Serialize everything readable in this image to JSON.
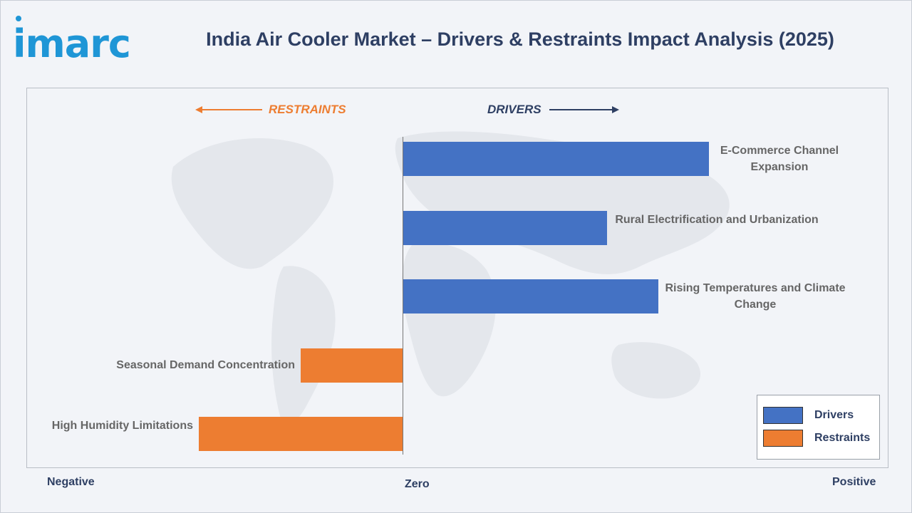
{
  "brand": {
    "logo_text": "imarc"
  },
  "title": "India Air Cooler Market – Drivers & Restraints Impact Analysis (2025)",
  "colors": {
    "drivers": "#4472c4",
    "restraints": "#ed7d31",
    "title": "#2e3f63",
    "logo": "#1f96d6"
  },
  "direction_labels": {
    "restraints": "RESTRAINTS",
    "drivers": "DRIVERS"
  },
  "axis_labels": {
    "negative": "Negative",
    "zero": "Zero",
    "positive": "Positive"
  },
  "legend": {
    "drivers": "Drivers",
    "restraints": "Restraints"
  },
  "chart_data": {
    "type": "bar",
    "orientation": "horizontal",
    "categories": [
      "E-Commerce Channel Expansion",
      "Rural Electrification and Urbanization",
      "Rising Temperatures and Climate Change",
      "Seasonal Demand Concentration",
      "High Humidity Limitations"
    ],
    "series": [
      {
        "name": "Drivers",
        "values": [
          3.0,
          2.0,
          2.5,
          null,
          null
        ]
      },
      {
        "name": "Restraints",
        "values": [
          null,
          null,
          null,
          -1.0,
          -2.0
        ]
      }
    ],
    "xlim": [
      -3.7,
      4.7
    ],
    "grid": false,
    "legend_position": "bottom-right"
  }
}
